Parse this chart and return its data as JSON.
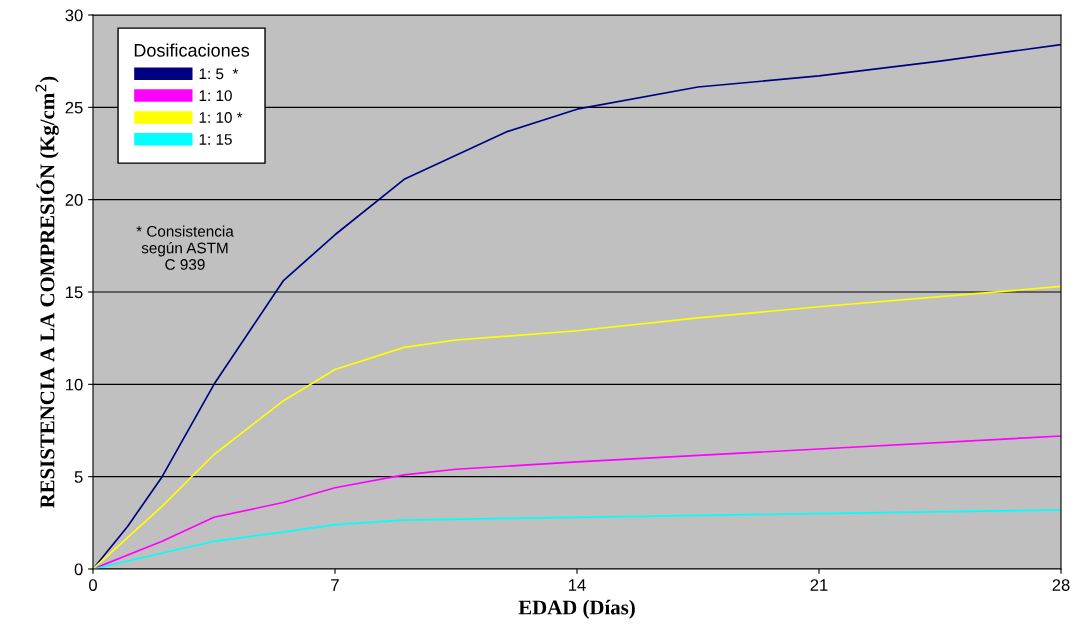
{
  "chart_data": {
    "type": "line",
    "xlabel": "EDAD (Días)",
    "ylabel": "RESISTENCIA A LA COMPRESIÓN (Kg/cm$^{2}$)",
    "legend_title": "Dosificaciones",
    "series": [
      {
        "name": "1: 5  *",
        "color": "#000080",
        "x": [
          0,
          1,
          2,
          3.5,
          5.5,
          7,
          9,
          10.5,
          12,
          14,
          17.5,
          21,
          24.5,
          28
        ],
        "values": [
          0,
          2.3,
          5.0,
          10.0,
          15.6,
          18.1,
          21.1,
          22.4,
          23.7,
          24.9,
          26.1,
          26.7,
          27.5,
          28.4
        ]
      },
      {
        "name": "1: 10",
        "color": "#ff00ff",
        "x": [
          0,
          2,
          3.5,
          5.5,
          7,
          9,
          10.5,
          14,
          21,
          28
        ],
        "values": [
          0,
          1.5,
          2.8,
          3.6,
          4.4,
          5.1,
          5.4,
          5.8,
          6.5,
          7.2
        ]
      },
      {
        "name": "1: 10 *",
        "color": "#ffff00",
        "x": [
          0,
          2,
          3.5,
          5.5,
          7,
          9,
          10.5,
          14,
          17.5,
          21,
          28
        ],
        "values": [
          0,
          3.4,
          6.2,
          9.1,
          10.8,
          12.0,
          12.4,
          12.9,
          13.6,
          14.2,
          15.3
        ]
      },
      {
        "name": "1: 15",
        "color": "#00ffff",
        "x": [
          0,
          3.5,
          5.5,
          7,
          9,
          14,
          21,
          28
        ],
        "values": [
          0,
          1.5,
          2.0,
          2.4,
          2.65,
          2.8,
          3.0,
          3.2
        ]
      }
    ],
    "annotations": [
      "* Consistencia\nsegún ASTM\nC 939"
    ],
    "xlim": [
      0,
      28
    ],
    "xticks": [
      0,
      7,
      14,
      21,
      28
    ],
    "ylim": [
      0,
      30
    ],
    "yticks": [
      0,
      5,
      10,
      15,
      20,
      25,
      30
    ],
    "grid": "y",
    "legend": "top left",
    "marker": "none",
    "line_style": "solid"
  }
}
